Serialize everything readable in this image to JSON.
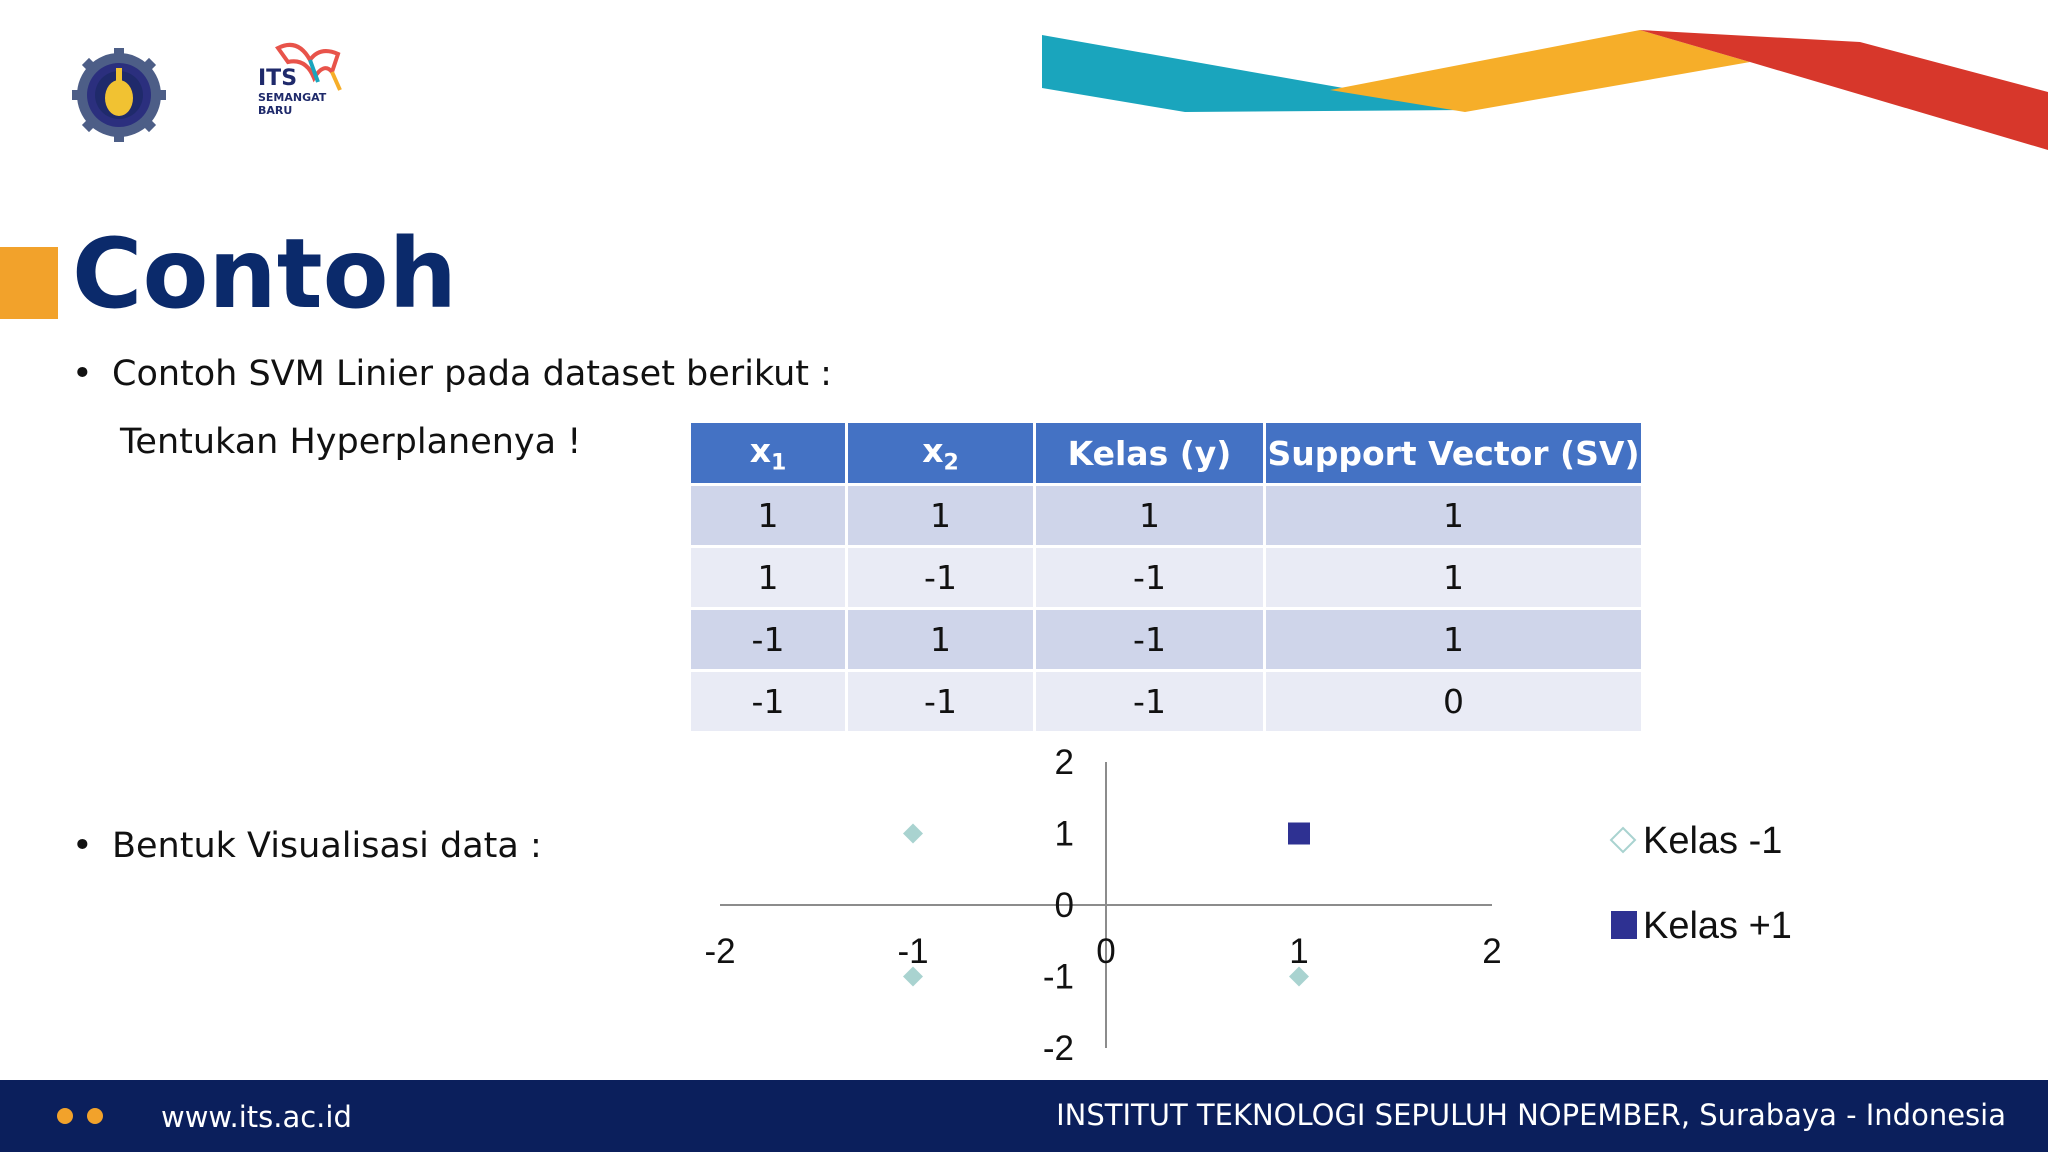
{
  "slide": {
    "title": "Contoh",
    "bullet1": "Contoh SVM Linier pada dataset berikut :",
    "bullet1_sub": "Tentukan Hyperplanenya !",
    "bullet2": "Bentuk Visualisasi data :",
    "bullet_symbol": "•"
  },
  "logos": {
    "its_text_1": "ITS",
    "its_text_2": "SEMANGAT",
    "its_text_3": "BARU"
  },
  "table": {
    "headers": [
      {
        "base": "x",
        "sub": "1"
      },
      {
        "base": "x",
        "sub": "2"
      },
      {
        "base": "Kelas (y)",
        "sub": ""
      },
      {
        "base": "Support Vector (SV)",
        "sub": ""
      }
    ],
    "rows": [
      [
        "1",
        "1",
        "1",
        "1"
      ],
      [
        "1",
        "-1",
        "-1",
        "1"
      ],
      [
        "-1",
        "1",
        "-1",
        "1"
      ],
      [
        "-1",
        "-1",
        "-1",
        "0"
      ]
    ]
  },
  "chart_data": {
    "type": "scatter",
    "xlim": [
      -2,
      2
    ],
    "ylim": [
      -2,
      2
    ],
    "x_ticks": [
      "-2",
      "-1",
      "0",
      "1",
      "2"
    ],
    "y_ticks": [
      "2",
      "1",
      "0",
      "-1",
      "-2"
    ],
    "series": [
      {
        "name": "Kelas -1",
        "marker": "diamond",
        "color": "#a9d3d0",
        "points": [
          [
            1,
            -1
          ],
          [
            -1,
            1
          ],
          [
            -1,
            -1
          ]
        ]
      },
      {
        "name": "Kelas +1",
        "marker": "square",
        "color": "#2e3192",
        "points": [
          [
            1,
            1
          ]
        ]
      }
    ],
    "legend_position": "right"
  },
  "footer": {
    "url": "www.its.ac.id",
    "institution": "INSTITUT TEKNOLOGI SEPULUH NOPEMBER, Surabaya - Indonesia"
  },
  "colors": {
    "title": "#0b2a6b",
    "accent_orange": "#f2a22b",
    "ribbon_teal": "#1aa5bd",
    "ribbon_red": "#d7372b",
    "table_header": "#4472c4",
    "footer_bg": "#0b1f5c"
  }
}
